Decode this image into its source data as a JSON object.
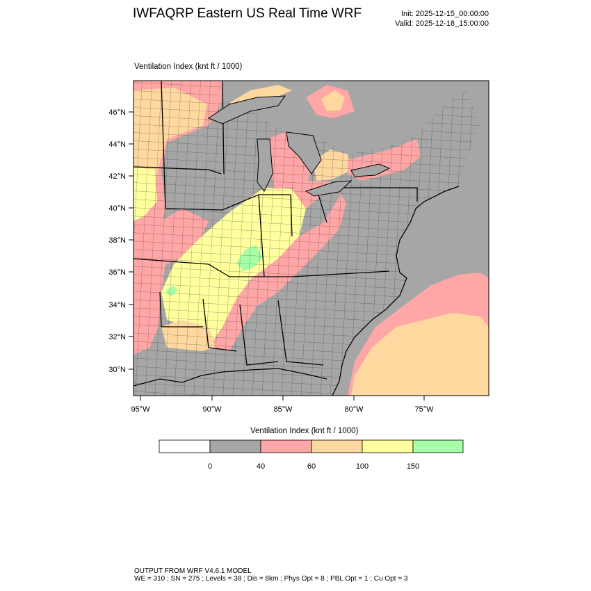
{
  "header": {
    "title": "IWFAQRP Eastern US Real Time WRF",
    "init": "Init: 2025-12-15_00:00:00",
    "valid": "Valid: 2025-12-18_15:00:00"
  },
  "plot": {
    "label": "Ventilation Index   (knt ft / 1000)",
    "lat_ticks": [
      "46°N",
      "44°N",
      "42°N",
      "40°N",
      "38°N",
      "36°N",
      "34°N",
      "32°N",
      "30°N"
    ],
    "lon_ticks": [
      "95°W",
      "90°W",
      "85°W",
      "80°W",
      "75°W"
    ]
  },
  "legend": {
    "title": "Ventilation Index  (knt ft / 1000)",
    "colors": [
      "#ffffff",
      "#a6a6a6",
      "#ffa6a6",
      "#ffd8a0",
      "#ffff9e",
      "#a6ffa6"
    ],
    "thresholds": [
      "0",
      "40",
      "60",
      "100",
      "150"
    ]
  },
  "palette": {
    "water": "#a6a6a6",
    "low": "#a6a6a6",
    "pink": "#ffa6a6",
    "orange": "#ffd8a0",
    "yellow": "#ffff9e",
    "green": "#a6ffa6"
  },
  "footer": {
    "line1": "OUTPUT FROM WRF V4.6.1 MODEL",
    "line2": "WE = 310 ; SN = 275 ; Levels = 38 ; Dis = 8km ; Phys Opt = 8 ; PBL Opt = 1 ; Cu Opt = 3"
  }
}
